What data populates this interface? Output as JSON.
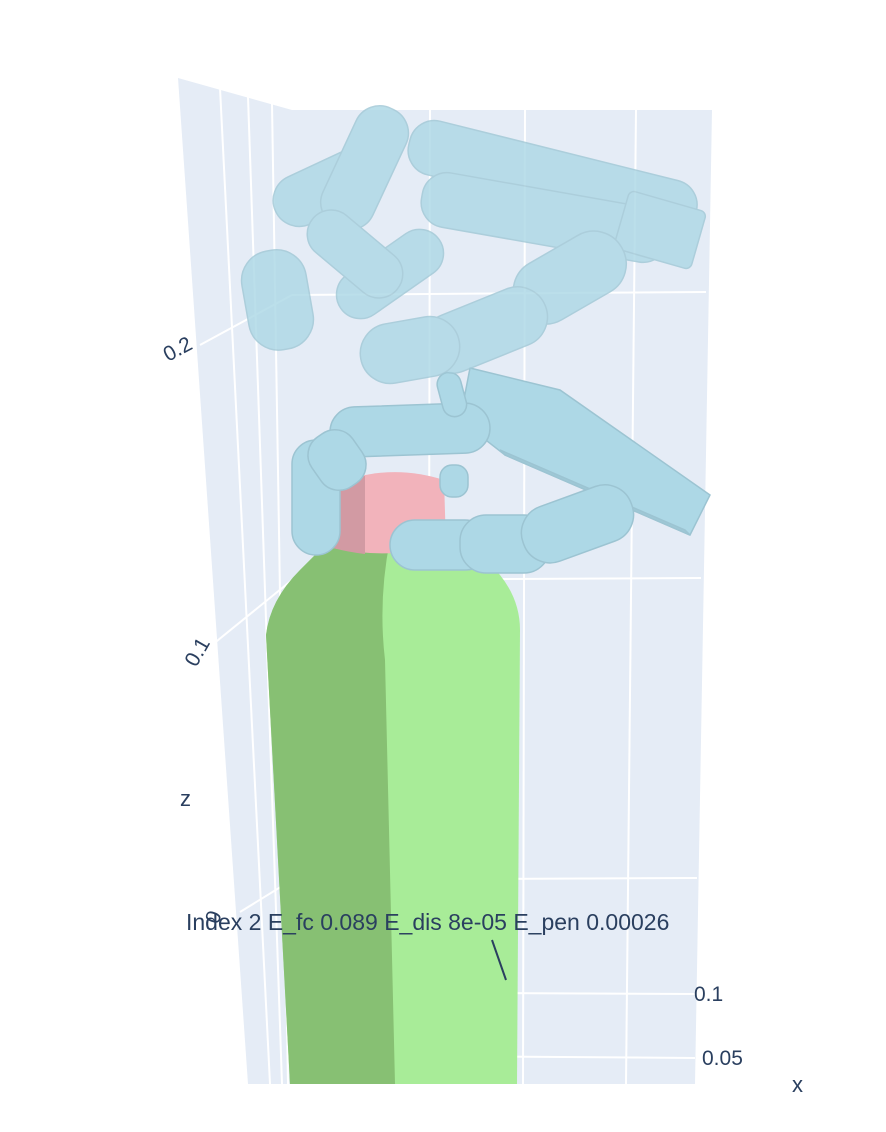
{
  "plot": {
    "annotation": "Index 2  E_fc 0.089  E_dis 8e-05  E_pen 0.00026",
    "z_axis": {
      "title": "z",
      "ticks": [
        "0.2",
        "0.1",
        "0"
      ]
    },
    "x_axis": {
      "title": "x",
      "ticks": [
        "0.1",
        "0.05"
      ]
    }
  },
  "colors": {
    "background": "#ffffff",
    "plot_wall": "#e5ecf6",
    "grid": "#ffffff",
    "text": "#2a3f5f",
    "bottle_light": "#a8ec98",
    "bottle_shadow": "#87c073",
    "cap": "#f2b3bb",
    "hand": "#add8e6"
  },
  "objects": {
    "bottle": "bottle",
    "cap": "cap",
    "hand_mesh": "hand"
  }
}
